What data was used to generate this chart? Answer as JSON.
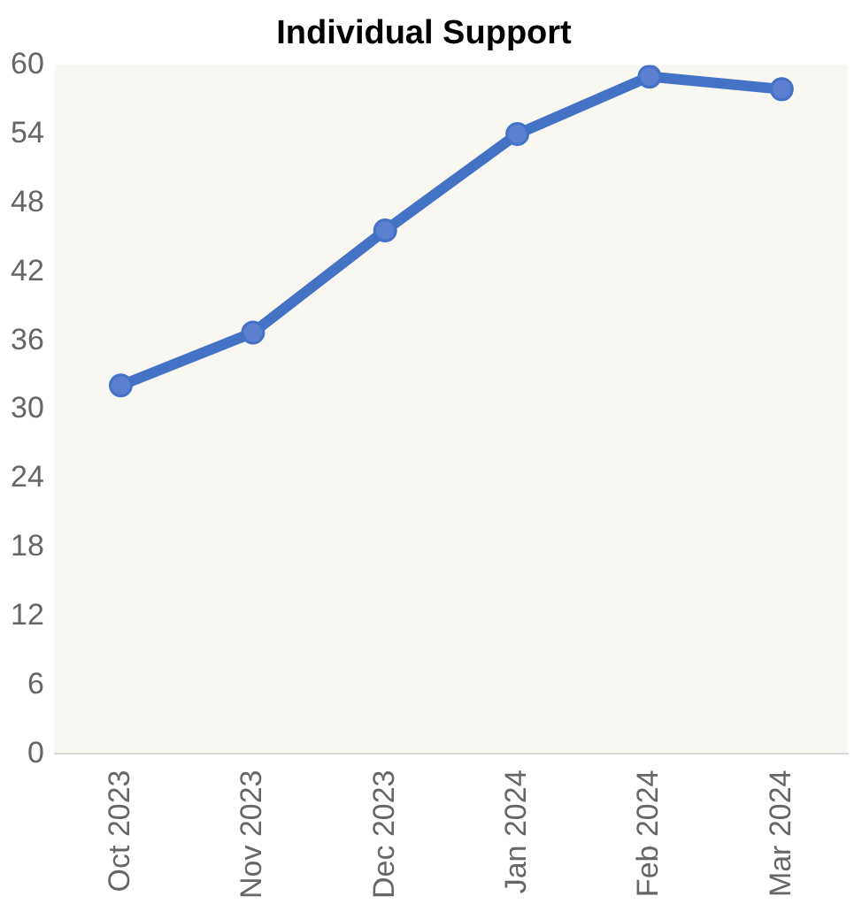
{
  "chart_data": {
    "type": "line",
    "title": "Individual Support",
    "categories": [
      "Oct 2023",
      "Nov 2023",
      "Dec 2023",
      "Jan 2024",
      "Feb 2024",
      "Mar 2024"
    ],
    "series": [
      {
        "color": "#4472c4",
        "values": [
          32.1,
          36.7,
          45.6,
          54.0,
          59.0,
          57.9
        ]
      }
    ],
    "ylim": [
      0,
      60
    ],
    "yticks": [
      0,
      6,
      12,
      18,
      24,
      30,
      36,
      42,
      48,
      54,
      60
    ],
    "grid": false,
    "legend": false,
    "marker": "circle",
    "line_style": "solid"
  }
}
